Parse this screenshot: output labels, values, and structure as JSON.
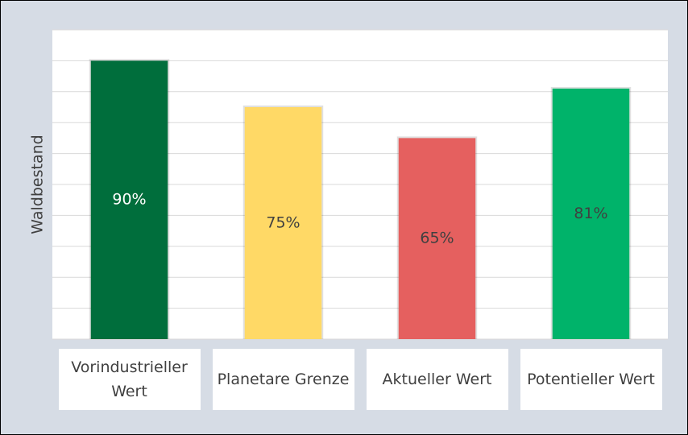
{
  "chart_data": {
    "type": "bar",
    "y_label": "Waldbestand",
    "categories": [
      "Vorindustrieller Wert",
      "Planetare Grenze",
      "Aktueller Wert",
      "Potentieller Wert"
    ],
    "values": [
      90,
      75,
      65,
      81
    ],
    "value_labels": [
      "90%",
      "75%",
      "65%",
      "81%"
    ],
    "colors": [
      "#006e3c",
      "#ffd966",
      "#e5605f",
      "#00b36a"
    ],
    "label_colors": [
      "#ffffff",
      "#404040",
      "#404040",
      "#404040"
    ],
    "ylim": [
      0,
      100
    ],
    "yticks": [
      0,
      10,
      20,
      30,
      40,
      50,
      60,
      70,
      80,
      90,
      100
    ],
    "grid": true
  }
}
